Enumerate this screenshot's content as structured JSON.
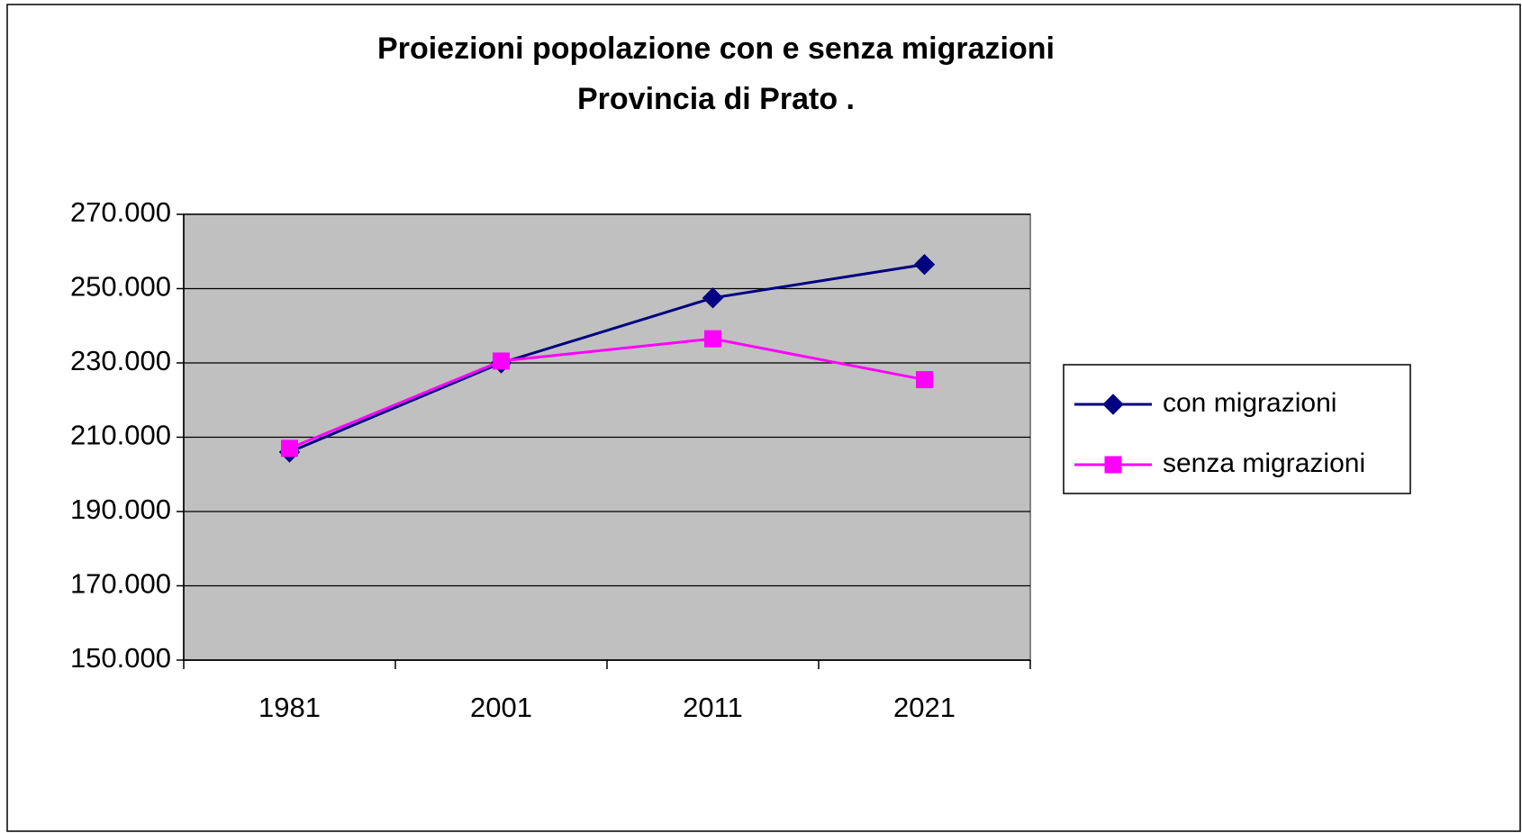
{
  "chart_data": {
    "type": "line",
    "title": "Proiezioni popolazione con e senza migrazioni",
    "subtitle": "Provincia di Prato .",
    "categories": [
      "1981",
      "2001",
      "2011",
      "2021"
    ],
    "series": [
      {
        "name": "con migrazioni",
        "color": "#000080",
        "marker": "diamond",
        "values": [
          206000,
          230000,
          247500,
          256500
        ]
      },
      {
        "name": "senza migrazioni",
        "color": "#ff00ff",
        "marker": "square",
        "values": [
          207000,
          230500,
          236500,
          225500
        ]
      }
    ],
    "ylim": [
      150000,
      270000
    ],
    "yticks": [
      {
        "value": 150000,
        "label": "150.000"
      },
      {
        "value": 170000,
        "label": "170.000"
      },
      {
        "value": 190000,
        "label": "190.000"
      },
      {
        "value": 210000,
        "label": "210.000"
      },
      {
        "value": 230000,
        "label": "230.000"
      },
      {
        "value": 250000,
        "label": "250.000"
      },
      {
        "value": 270000,
        "label": "270.000"
      }
    ],
    "grid": true,
    "legend": "right"
  }
}
